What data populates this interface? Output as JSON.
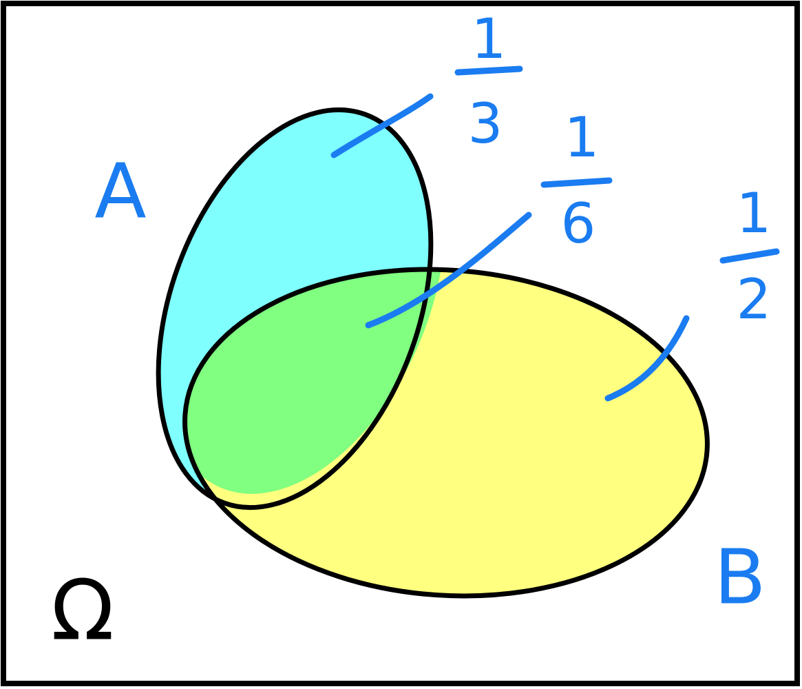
{
  "sets": [
    {
      "label": "A"
    },
    {
      "label": "B"
    }
  ],
  "universe": {
    "label": "Ω"
  },
  "regions": [
    {
      "numerator": 1,
      "denominator": 3
    },
    {
      "numerator": 1,
      "denominator": 6
    },
    {
      "numerator": 1,
      "denominator": 2
    }
  ]
}
